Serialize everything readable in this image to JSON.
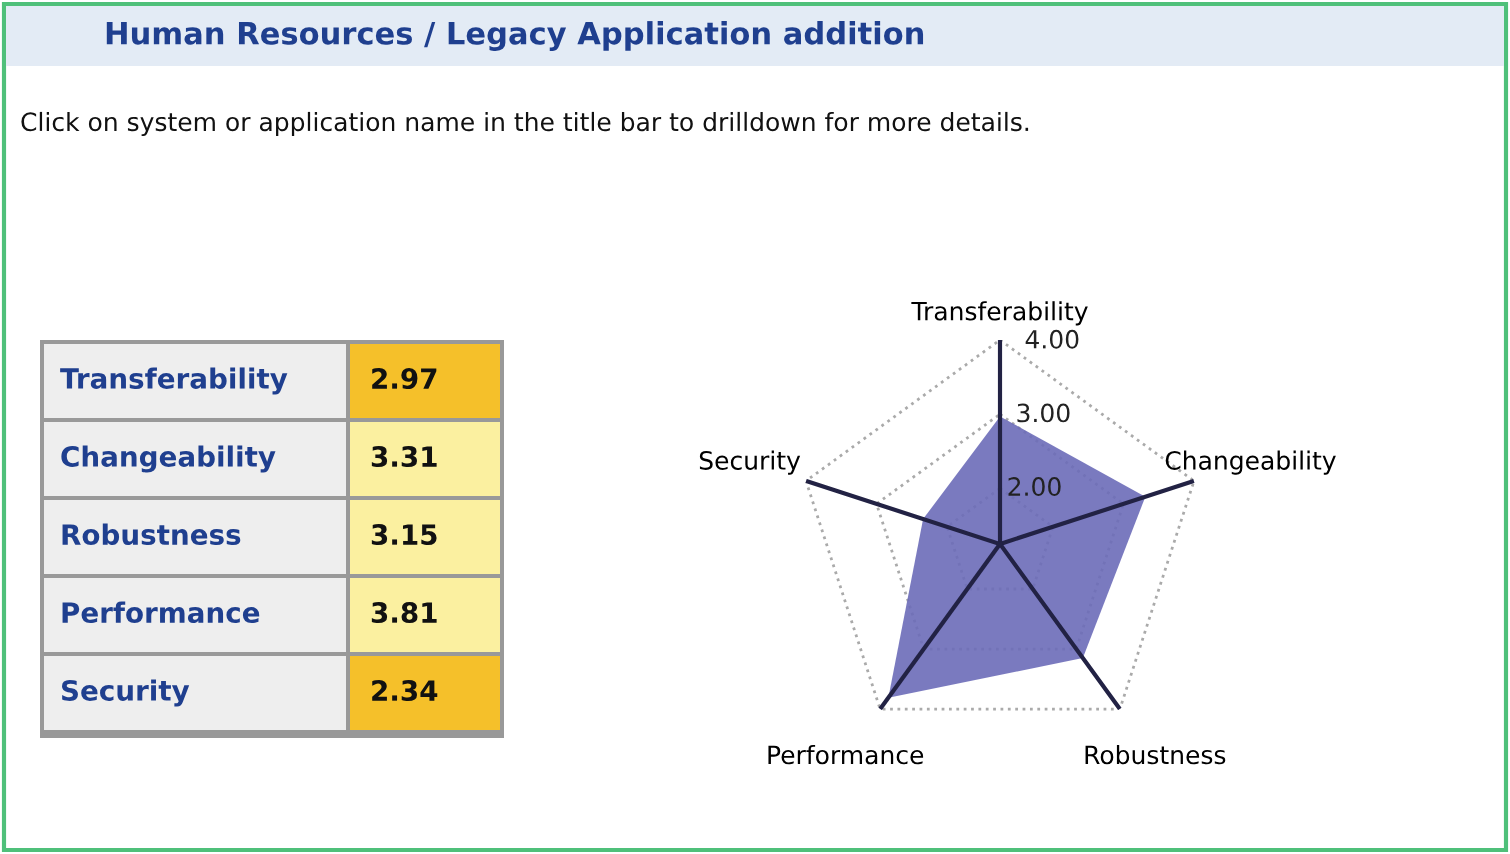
{
  "chart_data": [
    {
      "type": "other",
      "title": "Human Resources / Legacy Application addition",
      "subtitle": "Click on system or application name in the title bar to drilldown for more details.",
      "categories": [
        "Transferability",
        "Changeability",
        "Robustness",
        "Performance",
        "Security"
      ],
      "value_labels": [
        "2.97",
        "3.31",
        "3.15",
        "3.81",
        "2.34"
      ]
    },
    {
      "type": "radar",
      "categories": [
        "Transferability",
        "Changeability",
        "Robustness",
        "Performance",
        "Security"
      ],
      "series": [
        {
          "color": "#6b6bb8",
          "values": [
            2.97,
            3.31,
            3.15,
            3.81,
            2.34
          ]
        }
      ],
      "ylim": [
        1.25,
        4
      ],
      "yticks": [
        {
          "value": 2,
          "label": "2.00"
        },
        {
          "value": 3,
          "label": "3.00"
        },
        {
          "value": 4,
          "label": "4.00"
        }
      ],
      "grid": true
    }
  ]
}
